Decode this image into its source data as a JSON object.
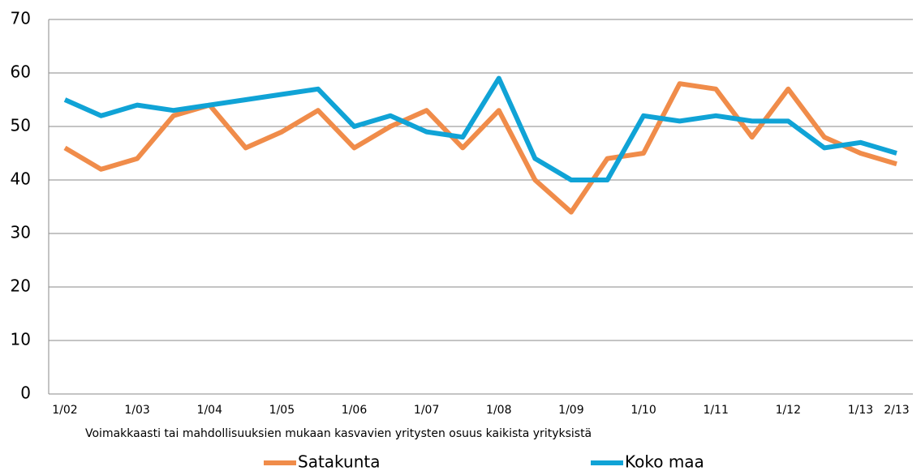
{
  "chart_data": {
    "type": "line",
    "xlabel": "Voimakkaasti tai mahdollisuuksien mukaan kasvavien yritysten osuus kaikista yrityksistä",
    "categories": [
      "1/02",
      null,
      "1/03",
      null,
      "1/04",
      null,
      "1/05",
      null,
      "1/06",
      null,
      "1/07",
      null,
      "1/08",
      null,
      "1/09",
      null,
      "1/10",
      null,
      "1/11",
      null,
      "1/12",
      null,
      "1/13",
      "2/13"
    ],
    "series": [
      {
        "name": "Satakunta",
        "color": "#f08c4a",
        "values": [
          46,
          42,
          44,
          52,
          54,
          46,
          49,
          53,
          46,
          50,
          53,
          46,
          53,
          40,
          34,
          44,
          45,
          58,
          57,
          48,
          57,
          48,
          45,
          43
        ]
      },
      {
        "name": "Koko maa",
        "color": "#10a3d6",
        "values": [
          55,
          52,
          54,
          53,
          54,
          55,
          56,
          57,
          50,
          52,
          49,
          48,
          59,
          44,
          40,
          40,
          52,
          51,
          52,
          51,
          51,
          46,
          47,
          45
        ]
      }
    ],
    "ylim": [
      0,
      70
    ],
    "yticks": [
      0,
      10,
      20,
      30,
      40,
      50,
      60,
      70
    ],
    "grid": true,
    "legend": "bottom"
  }
}
